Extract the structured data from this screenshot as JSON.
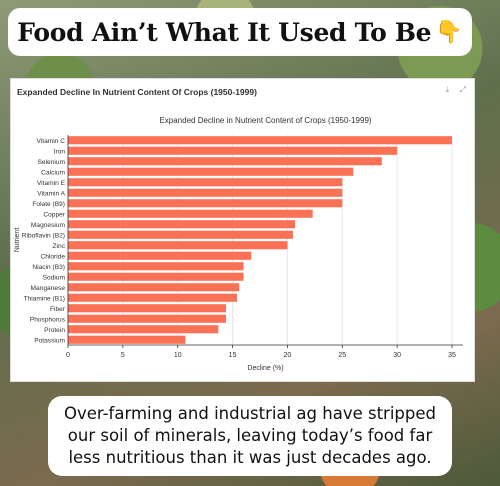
{
  "banner": {
    "title": "Food Ain’t What It Used To Be",
    "icon": "pointing-down-hand-icon",
    "icon_glyph": "👇"
  },
  "panel": {
    "header": "Expanded Decline In Nutrient Content Of Crops (1950-1999)",
    "download_glyph": "⤓",
    "expand_glyph": "⤢"
  },
  "caption": "Over-farming and industrial ag have stripped our soil of minerals, leaving today’s food far less nutritious than it was just decades ago.",
  "colors": {
    "bar": "#FA7155",
    "grid": "#e8e8e8"
  },
  "chart_data": {
    "type": "bar",
    "orientation": "horizontal",
    "title": "Expanded Decline in Nutrient Content of Crops (1950-1999)",
    "xlabel": "Decline (%)",
    "ylabel": "Nutrient",
    "xlim": [
      0,
      36
    ],
    "xticks": [
      0,
      5,
      10,
      15,
      20,
      25,
      30,
      35
    ],
    "grid": true,
    "categories": [
      "Vitamin C",
      "Iron",
      "Selenium",
      "Calcium",
      "Vitamin E",
      "Vitamin A",
      "Folate (B9)",
      "Copper",
      "Magnesium",
      "Riboflavin (B2)",
      "Zinc",
      "Chloride",
      "Niacin (B3)",
      "Sodium",
      "Manganese",
      "Thiamine (B1)",
      "Fiber",
      "Phosphorus",
      "Protein",
      "Potassium"
    ],
    "values": [
      35,
      30,
      28.6,
      26,
      25,
      25,
      25,
      22.3,
      20.7,
      20.5,
      20,
      16.7,
      16,
      16,
      15.6,
      15.4,
      14.4,
      14.4,
      13.7,
      10.7
    ]
  }
}
